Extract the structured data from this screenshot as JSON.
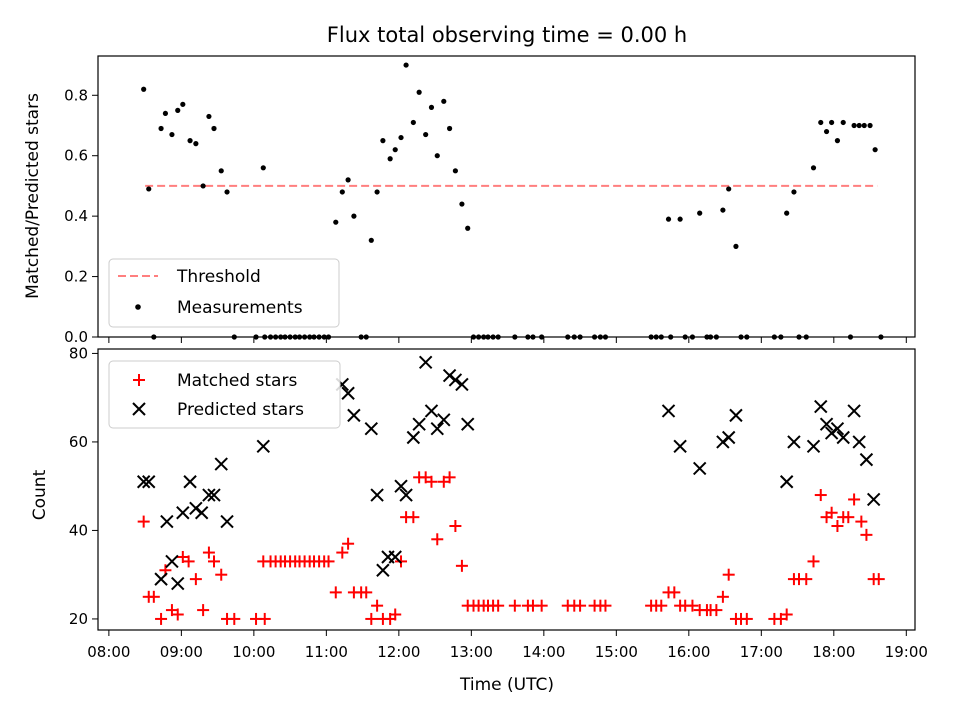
{
  "chart_data": [
    {
      "type": "scatter",
      "title": "Flux total observing time = 0.00 h",
      "ylabel": "Matched/Predicted stars",
      "ylim": [
        0,
        0.93
      ],
      "yticks": [
        "0.0",
        "0.2",
        "0.4",
        "0.6",
        "0.8"
      ],
      "ytick_values": [
        0,
        0.2,
        0.4,
        0.6,
        0.8
      ],
      "legend_position": "lower-left",
      "threshold": {
        "name": "Threshold",
        "value": 0.5,
        "x_range": [
          8.5,
          18.6
        ],
        "color": "#ff7f7f"
      },
      "series": [
        {
          "name": "Measurements",
          "marker": "dot",
          "color": "#000000",
          "points": [
            [
              8.48,
              0.82
            ],
            [
              8.55,
              0.49
            ],
            [
              8.62,
              0.0
            ],
            [
              8.72,
              0.69
            ],
            [
              8.78,
              0.74
            ],
            [
              8.87,
              0.67
            ],
            [
              8.95,
              0.75
            ],
            [
              9.02,
              0.77
            ],
            [
              9.12,
              0.65
            ],
            [
              9.2,
              0.64
            ],
            [
              9.3,
              0.5
            ],
            [
              9.38,
              0.73
            ],
            [
              9.45,
              0.69
            ],
            [
              9.55,
              0.55
            ],
            [
              9.63,
              0.48
            ],
            [
              9.73,
              0.0
            ],
            [
              10.03,
              0.0
            ],
            [
              10.13,
              0.56
            ],
            [
              10.15,
              0.0
            ],
            [
              10.23,
              0.0
            ],
            [
              10.3,
              0.0
            ],
            [
              10.37,
              0.0
            ],
            [
              10.43,
              0.0
            ],
            [
              10.5,
              0.0
            ],
            [
              10.57,
              0.0
            ],
            [
              10.63,
              0.0
            ],
            [
              10.7,
              0.0
            ],
            [
              10.77,
              0.0
            ],
            [
              10.83,
              0.0
            ],
            [
              10.9,
              0.0
            ],
            [
              10.97,
              0.0
            ],
            [
              11.03,
              0.0
            ],
            [
              11.13,
              0.38
            ],
            [
              11.22,
              0.48
            ],
            [
              11.3,
              0.52
            ],
            [
              11.38,
              0.4
            ],
            [
              11.48,
              0.0
            ],
            [
              11.55,
              0.0
            ],
            [
              11.62,
              0.32
            ],
            [
              11.7,
              0.48
            ],
            [
              11.78,
              0.65
            ],
            [
              11.88,
              0.59
            ],
            [
              11.95,
              0.62
            ],
            [
              12.03,
              0.66
            ],
            [
              12.1,
              0.9
            ],
            [
              12.2,
              0.71
            ],
            [
              12.28,
              0.81
            ],
            [
              12.37,
              0.67
            ],
            [
              12.45,
              0.76
            ],
            [
              12.53,
              0.6
            ],
            [
              12.62,
              0.78
            ],
            [
              12.7,
              0.69
            ],
            [
              12.78,
              0.55
            ],
            [
              12.87,
              0.44
            ],
            [
              12.95,
              0.36
            ],
            [
              13.03,
              0.0
            ],
            [
              13.1,
              0.0
            ],
            [
              13.17,
              0.0
            ],
            [
              13.23,
              0.0
            ],
            [
              13.3,
              0.0
            ],
            [
              13.37,
              0.0
            ],
            [
              13.6,
              0.0
            ],
            [
              13.78,
              0.0
            ],
            [
              13.85,
              0.0
            ],
            [
              13.97,
              0.0
            ],
            [
              14.33,
              0.0
            ],
            [
              14.42,
              0.0
            ],
            [
              14.5,
              0.0
            ],
            [
              14.7,
              0.0
            ],
            [
              14.78,
              0.0
            ],
            [
              14.85,
              0.0
            ],
            [
              15.48,
              0.0
            ],
            [
              15.55,
              0.0
            ],
            [
              15.62,
              0.0
            ],
            [
              15.72,
              0.39
            ],
            [
              15.75,
              0.0
            ],
            [
              15.88,
              0.39
            ],
            [
              15.95,
              0.0
            ],
            [
              16.05,
              0.0
            ],
            [
              16.15,
              0.41
            ],
            [
              16.25,
              0.0
            ],
            [
              16.3,
              0.0
            ],
            [
              16.38,
              0.0
            ],
            [
              16.47,
              0.42
            ],
            [
              16.55,
              0.49
            ],
            [
              16.65,
              0.3
            ],
            [
              16.72,
              0.0
            ],
            [
              16.8,
              0.0
            ],
            [
              17.18,
              0.0
            ],
            [
              17.27,
              0.0
            ],
            [
              17.35,
              0.41
            ],
            [
              17.45,
              0.48
            ],
            [
              17.52,
              0.0
            ],
            [
              17.62,
              0.0
            ],
            [
              17.72,
              0.56
            ],
            [
              17.82,
              0.71
            ],
            [
              17.9,
              0.68
            ],
            [
              17.97,
              0.71
            ],
            [
              18.05,
              0.65
            ],
            [
              18.13,
              0.71
            ],
            [
              18.23,
              0.0
            ],
            [
              18.28,
              0.7
            ],
            [
              18.35,
              0.7
            ],
            [
              18.42,
              0.7
            ],
            [
              18.5,
              0.7
            ],
            [
              18.57,
              0.62
            ],
            [
              18.65,
              0.0
            ]
          ]
        }
      ]
    },
    {
      "type": "scatter",
      "xlabel": "Time (UTC)",
      "ylabel": "Count",
      "xlim": [
        7.85,
        19.12
      ],
      "ylim": [
        17.5,
        81
      ],
      "xticks": [
        "08:00",
        "09:00",
        "10:00",
        "11:00",
        "12:00",
        "13:00",
        "14:00",
        "15:00",
        "16:00",
        "17:00",
        "18:00",
        "19:00"
      ],
      "xtick_values": [
        8,
        9,
        10,
        11,
        12,
        13,
        14,
        15,
        16,
        17,
        18,
        19
      ],
      "yticks": [
        "20",
        "40",
        "60",
        "80"
      ],
      "ytick_values": [
        20,
        40,
        60,
        80
      ],
      "legend_position": "upper-left",
      "series": [
        {
          "name": "Matched stars",
          "marker": "plus",
          "color": "#ff0000",
          "points": [
            [
              8.48,
              42
            ],
            [
              8.55,
              25
            ],
            [
              8.62,
              25
            ],
            [
              8.72,
              20
            ],
            [
              8.78,
              31
            ],
            [
              8.87,
              22
            ],
            [
              8.95,
              21
            ],
            [
              9.02,
              34
            ],
            [
              9.1,
              33
            ],
            [
              9.2,
              29
            ],
            [
              9.3,
              22
            ],
            [
              9.38,
              35
            ],
            [
              9.45,
              33
            ],
            [
              9.55,
              30
            ],
            [
              9.63,
              20
            ],
            [
              9.73,
              20
            ],
            [
              10.03,
              20
            ],
            [
              10.13,
              33
            ],
            [
              10.15,
              20
            ],
            [
              10.23,
              33
            ],
            [
              10.3,
              33
            ],
            [
              10.37,
              33
            ],
            [
              10.43,
              33
            ],
            [
              10.5,
              33
            ],
            [
              10.57,
              33
            ],
            [
              10.63,
              33
            ],
            [
              10.7,
              33
            ],
            [
              10.77,
              33
            ],
            [
              10.83,
              33
            ],
            [
              10.9,
              33
            ],
            [
              10.97,
              33
            ],
            [
              11.03,
              33
            ],
            [
              11.13,
              26
            ],
            [
              11.22,
              35
            ],
            [
              11.3,
              37
            ],
            [
              11.38,
              26
            ],
            [
              11.48,
              26
            ],
            [
              11.55,
              26
            ],
            [
              11.62,
              20
            ],
            [
              11.7,
              23
            ],
            [
              11.78,
              20
            ],
            [
              11.88,
              20
            ],
            [
              11.95,
              21
            ],
            [
              12.03,
              33
            ],
            [
              12.1,
              43
            ],
            [
              12.2,
              43
            ],
            [
              12.28,
              52
            ],
            [
              12.37,
              52
            ],
            [
              12.45,
              51
            ],
            [
              12.53,
              38
            ],
            [
              12.62,
              51
            ],
            [
              12.7,
              52
            ],
            [
              12.78,
              41
            ],
            [
              12.87,
              32
            ],
            [
              12.95,
              23
            ],
            [
              13.03,
              23
            ],
            [
              13.1,
              23
            ],
            [
              13.17,
              23
            ],
            [
              13.23,
              23
            ],
            [
              13.3,
              23
            ],
            [
              13.37,
              23
            ],
            [
              13.6,
              23
            ],
            [
              13.78,
              23
            ],
            [
              13.85,
              23
            ],
            [
              13.97,
              23
            ],
            [
              14.33,
              23
            ],
            [
              14.42,
              23
            ],
            [
              14.5,
              23
            ],
            [
              14.7,
              23
            ],
            [
              14.78,
              23
            ],
            [
              14.85,
              23
            ],
            [
              15.48,
              23
            ],
            [
              15.55,
              23
            ],
            [
              15.62,
              23
            ],
            [
              15.72,
              26
            ],
            [
              15.8,
              26
            ],
            [
              15.88,
              23
            ],
            [
              15.95,
              23
            ],
            [
              16.05,
              23
            ],
            [
              16.15,
              22
            ],
            [
              16.25,
              22
            ],
            [
              16.3,
              22
            ],
            [
              16.38,
              22
            ],
            [
              16.47,
              25
            ],
            [
              16.55,
              30
            ],
            [
              16.65,
              20
            ],
            [
              16.72,
              20
            ],
            [
              16.8,
              20
            ],
            [
              17.18,
              20
            ],
            [
              17.27,
              20
            ],
            [
              17.35,
              21
            ],
            [
              17.45,
              29
            ],
            [
              17.52,
              29
            ],
            [
              17.62,
              29
            ],
            [
              17.72,
              33
            ],
            [
              17.82,
              48
            ],
            [
              17.9,
              43
            ],
            [
              17.97,
              44
            ],
            [
              18.05,
              41
            ],
            [
              18.13,
              43
            ],
            [
              18.2,
              43
            ],
            [
              18.28,
              47
            ],
            [
              18.38,
              42
            ],
            [
              18.45,
              39
            ],
            [
              18.55,
              29
            ],
            [
              18.62,
              29
            ]
          ]
        },
        {
          "name": "Predicted stars",
          "marker": "x",
          "color": "#000000",
          "points": [
            [
              8.48,
              51
            ],
            [
              8.55,
              51
            ],
            [
              8.72,
              29
            ],
            [
              8.8,
              42
            ],
            [
              8.87,
              33
            ],
            [
              8.95,
              28
            ],
            [
              9.02,
              44
            ],
            [
              9.12,
              51
            ],
            [
              9.2,
              45
            ],
            [
              9.28,
              44
            ],
            [
              9.38,
              48
            ],
            [
              9.45,
              48
            ],
            [
              9.55,
              55
            ],
            [
              9.63,
              42
            ],
            [
              10.13,
              59
            ],
            [
              11.22,
              73
            ],
            [
              11.3,
              71
            ],
            [
              11.38,
              66
            ],
            [
              11.62,
              63
            ],
            [
              11.7,
              48
            ],
            [
              11.78,
              31
            ],
            [
              11.85,
              34
            ],
            [
              11.95,
              34
            ],
            [
              12.03,
              50
            ],
            [
              12.1,
              48
            ],
            [
              12.2,
              61
            ],
            [
              12.28,
              64
            ],
            [
              12.37,
              78
            ],
            [
              12.45,
              67
            ],
            [
              12.53,
              63
            ],
            [
              12.62,
              65
            ],
            [
              12.7,
              75
            ],
            [
              12.78,
              74
            ],
            [
              12.87,
              73
            ],
            [
              12.95,
              64
            ],
            [
              15.72,
              67
            ],
            [
              15.88,
              59
            ],
            [
              16.15,
              54
            ],
            [
              16.47,
              60
            ],
            [
              16.55,
              61
            ],
            [
              16.65,
              66
            ],
            [
              17.35,
              51
            ],
            [
              17.45,
              60
            ],
            [
              17.72,
              59
            ],
            [
              17.82,
              68
            ],
            [
              17.9,
              64
            ],
            [
              17.97,
              62
            ],
            [
              18.05,
              63
            ],
            [
              18.13,
              61
            ],
            [
              18.28,
              67
            ],
            [
              18.35,
              60
            ],
            [
              18.45,
              56
            ],
            [
              18.55,
              47
            ]
          ]
        }
      ]
    }
  ]
}
